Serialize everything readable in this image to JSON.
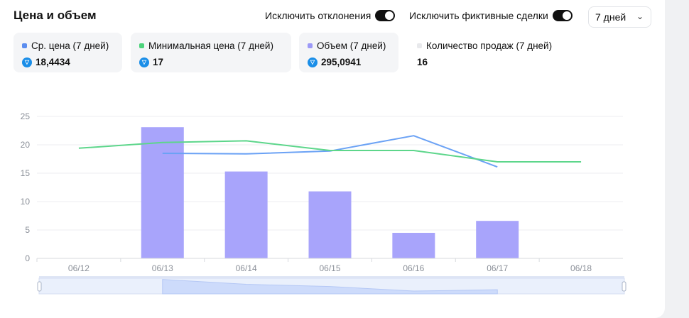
{
  "header": {
    "title": "Цена и объем",
    "toggle_outliers_label": "Исключить отклонения",
    "toggle_wash_label": "Исключить фиктивные сделки",
    "period_value": "7 дней"
  },
  "stats": [
    {
      "label": "Ср. цена (7 дней)",
      "value": "18,4434",
      "color": "#5b8def",
      "icon": "ton-icon"
    },
    {
      "label": "Минимальная цена (7 дней)",
      "value": "17",
      "color": "#4cd37b",
      "icon": "ton-icon"
    },
    {
      "label": "Объем (7 дней)",
      "value": "295,0941",
      "color": "#9c99f7",
      "icon": "ton-icon"
    },
    {
      "label": "Количество продаж (7 дней)",
      "value": "16",
      "color": "#e8e9ec",
      "icon": null
    }
  ],
  "colors": {
    "avg_price_line": "#6ba2f5",
    "min_price_line": "#5dd68b",
    "volume_bar": "#a8a4fb",
    "toggle_on": "#111111",
    "ton": "#1a8ee8"
  },
  "chart_data": {
    "type": "bar",
    "categories": [
      "06/12",
      "06/13",
      "06/14",
      "06/15",
      "06/16",
      "06/17",
      "06/18"
    ],
    "ylim": [
      0,
      25
    ],
    "yticks": [
      0,
      5,
      10,
      15,
      20,
      25
    ],
    "grid": true,
    "series": [
      {
        "name": "Объем (7 дней)",
        "kind": "bar",
        "values": [
          null,
          23.1,
          15.3,
          11.8,
          4.5,
          6.6,
          null
        ]
      },
      {
        "name": "Ср. цена (7 дней)",
        "kind": "line",
        "values": [
          null,
          18.5,
          18.4,
          18.9,
          21.6,
          16.1,
          null
        ]
      },
      {
        "name": "Минимальная цена (7 дней)",
        "kind": "line",
        "values": [
          19.4,
          20.4,
          20.7,
          19.0,
          19.0,
          17.0,
          17.0
        ]
      }
    ]
  }
}
